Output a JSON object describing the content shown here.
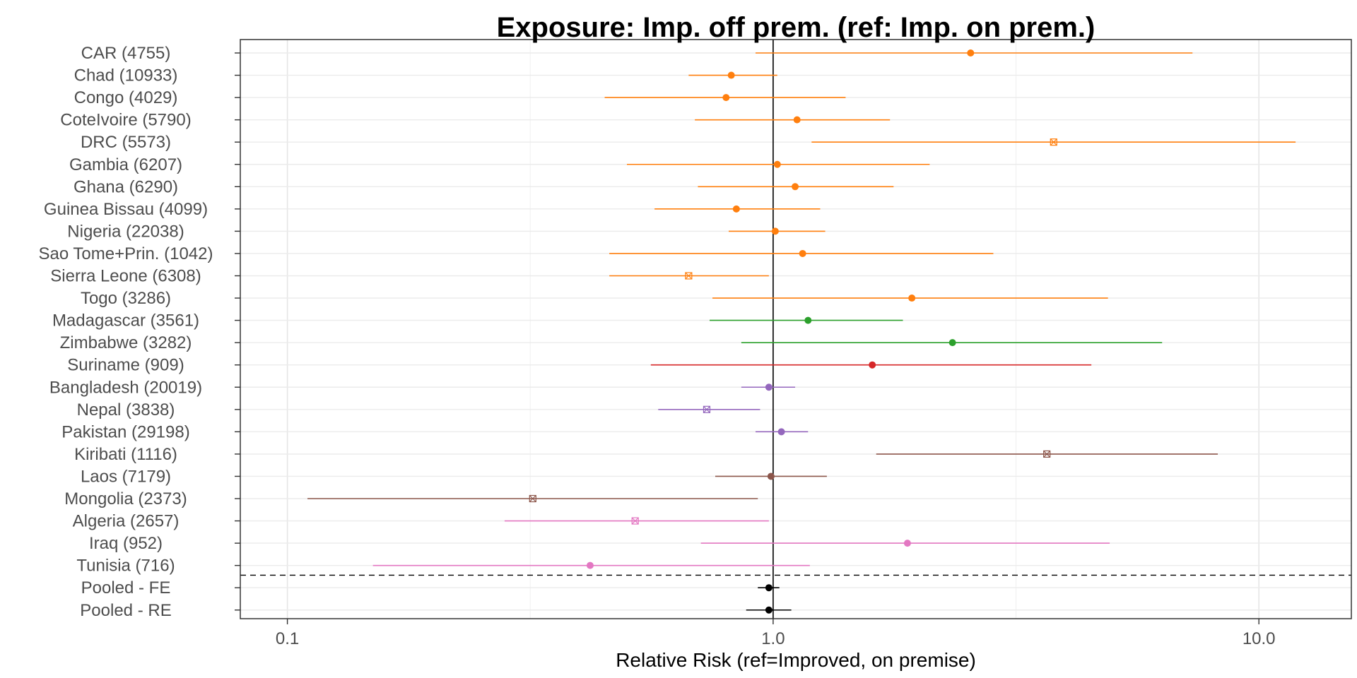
{
  "chart_data": {
    "type": "forest",
    "title": "Exposure: Imp. off prem. (ref: Imp. on prem.)",
    "xlabel": "Relative Risk (ref=Improved, on premise)",
    "ylabel": "",
    "x_scale": "log10",
    "xlim": [
      0.08,
      15.5
    ],
    "x_ticks": [
      {
        "value": 0.1,
        "label": "0.1"
      },
      {
        "value": 1.0,
        "label": "1.0"
      },
      {
        "value": 10.0,
        "label": "10.0"
      }
    ],
    "reference_line": 1.0,
    "grid": true,
    "legend": "none",
    "point_markers": {
      "significant": "filled circle",
      "not_significant": "crossed square"
    },
    "colors": {
      "West/Central Africa": "#ff7f0e",
      "Southern/East Africa": "#2ca02c",
      "South America": "#d62728",
      "South Asia": "#9467bd",
      "East Asia/Pacific": "#8c564b",
      "MENA": "#e377c2",
      "Pooled": "#000000"
    },
    "rows": [
      {
        "label": "CAR (4755)",
        "rr": 2.55,
        "lo": 0.92,
        "hi": 7.3,
        "color": "#ff7f0e",
        "marker": "circle"
      },
      {
        "label": "Chad (10933)",
        "rr": 0.82,
        "lo": 0.67,
        "hi": 1.02,
        "color": "#ff7f0e",
        "marker": "circle"
      },
      {
        "label": "Congo (4029)",
        "rr": 0.8,
        "lo": 0.45,
        "hi": 1.41,
        "color": "#ff7f0e",
        "marker": "circle"
      },
      {
        "label": "CoteIvoire (5790)",
        "rr": 1.12,
        "lo": 0.69,
        "hi": 1.74,
        "color": "#ff7f0e",
        "marker": "circle"
      },
      {
        "label": "DRC (5573)",
        "rr": 3.78,
        "lo": 1.2,
        "hi": 11.9,
        "color": "#ff7f0e",
        "marker": "crossed"
      },
      {
        "label": "Gambia (6207)",
        "rr": 1.02,
        "lo": 0.5,
        "hi": 2.1,
        "color": "#ff7f0e",
        "marker": "circle"
      },
      {
        "label": "Ghana (6290)",
        "rr": 1.11,
        "lo": 0.7,
        "hi": 1.77,
        "color": "#ff7f0e",
        "marker": "circle"
      },
      {
        "label": "Guinea Bissau (4099)",
        "rr": 0.84,
        "lo": 0.57,
        "hi": 1.25,
        "color": "#ff7f0e",
        "marker": "circle"
      },
      {
        "label": "Nigeria (22038)",
        "rr": 1.01,
        "lo": 0.81,
        "hi": 1.28,
        "color": "#ff7f0e",
        "marker": "circle"
      },
      {
        "label": "Sao Tome+Prin. (1042)",
        "rr": 1.15,
        "lo": 0.46,
        "hi": 2.84,
        "color": "#ff7f0e",
        "marker": "circle"
      },
      {
        "label": "Sierra Leone (6308)",
        "rr": 0.67,
        "lo": 0.46,
        "hi": 0.98,
        "color": "#ff7f0e",
        "marker": "crossed"
      },
      {
        "label": "Togo (3286)",
        "rr": 1.93,
        "lo": 0.75,
        "hi": 4.89,
        "color": "#ff7f0e",
        "marker": "circle"
      },
      {
        "label": "Madagascar (3561)",
        "rr": 1.18,
        "lo": 0.74,
        "hi": 1.85,
        "color": "#2ca02c",
        "marker": "circle"
      },
      {
        "label": "Zimbabwe (3282)",
        "rr": 2.34,
        "lo": 0.86,
        "hi": 6.32,
        "color": "#2ca02c",
        "marker": "circle"
      },
      {
        "label": "Suriname (909)",
        "rr": 1.6,
        "lo": 0.56,
        "hi": 4.52,
        "color": "#d62728",
        "marker": "circle"
      },
      {
        "label": "Bangladesh (20019)",
        "rr": 0.98,
        "lo": 0.86,
        "hi": 1.11,
        "color": "#9467bd",
        "marker": "circle"
      },
      {
        "label": "Nepal (3838)",
        "rr": 0.73,
        "lo": 0.58,
        "hi": 0.94,
        "color": "#9467bd",
        "marker": "crossed"
      },
      {
        "label": "Pakistan (29198)",
        "rr": 1.04,
        "lo": 0.92,
        "hi": 1.18,
        "color": "#9467bd",
        "marker": "circle"
      },
      {
        "label": "Kiribati (1116)",
        "rr": 3.66,
        "lo": 1.63,
        "hi": 8.23,
        "color": "#8c564b",
        "marker": "crossed"
      },
      {
        "label": "Laos (7179)",
        "rr": 0.99,
        "lo": 0.76,
        "hi": 1.29,
        "color": "#8c564b",
        "marker": "circle"
      },
      {
        "label": "Mongolia (2373)",
        "rr": 0.32,
        "lo": 0.11,
        "hi": 0.93,
        "color": "#8c564b",
        "marker": "crossed"
      },
      {
        "label": "Algeria (2657)",
        "rr": 0.52,
        "lo": 0.28,
        "hi": 0.98,
        "color": "#e377c2",
        "marker": "crossed"
      },
      {
        "label": "Iraq (952)",
        "rr": 1.89,
        "lo": 0.71,
        "hi": 4.93,
        "color": "#e377c2",
        "marker": "circle"
      },
      {
        "label": "Tunisia (716)",
        "rr": 0.42,
        "lo": 0.15,
        "hi": 1.19,
        "color": "#e377c2",
        "marker": "circle"
      },
      {
        "label": "Pooled - FE",
        "rr": 0.98,
        "lo": 0.93,
        "hi": 1.03,
        "color": "#000000",
        "marker": "circle"
      },
      {
        "label": "Pooled - RE",
        "rr": 0.98,
        "lo": 0.88,
        "hi": 1.09,
        "color": "#000000",
        "marker": "circle"
      }
    ],
    "separator_before": "Pooled - FE"
  }
}
